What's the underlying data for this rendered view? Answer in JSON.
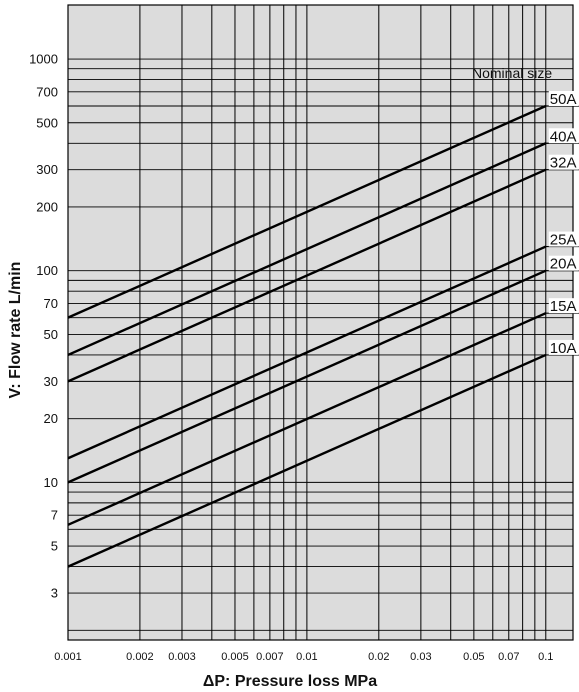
{
  "chart_data": {
    "type": "line",
    "xlabel": "ΔP: Pressure loss MPa",
    "ylabel": "V: Flow rate L/min",
    "x_scale": "log",
    "y_scale": "log",
    "xlim": [
      0.001,
      0.13
    ],
    "ylim": [
      1.8,
      1800
    ],
    "x_tick_labels": [
      {
        "value": 0.001,
        "label": "0.001"
      },
      {
        "value": 0.002,
        "label": "0.002"
      },
      {
        "value": 0.003,
        "label": "0.003"
      },
      {
        "value": 0.005,
        "label": "0.005"
      },
      {
        "value": 0.007,
        "label": "0.007"
      },
      {
        "value": 0.01,
        "label": "0.01"
      },
      {
        "value": 0.02,
        "label": "0.02"
      },
      {
        "value": 0.03,
        "label": "0.03"
      },
      {
        "value": 0.05,
        "label": "0.05"
      },
      {
        "value": 0.07,
        "label": "0.07"
      },
      {
        "value": 0.1,
        "label": "0.1"
      }
    ],
    "y_tick_labels": [
      {
        "value": 3,
        "label": "3"
      },
      {
        "value": 5,
        "label": "5"
      },
      {
        "value": 7,
        "label": "7"
      },
      {
        "value": 10,
        "label": "10"
      },
      {
        "value": 20,
        "label": "20"
      },
      {
        "value": 30,
        "label": "30"
      },
      {
        "value": 50,
        "label": "50"
      },
      {
        "value": 70,
        "label": "70"
      },
      {
        "value": 100,
        "label": "100"
      },
      {
        "value": 200,
        "label": "200"
      },
      {
        "value": 300,
        "label": "300"
      },
      {
        "value": 500,
        "label": "500"
      },
      {
        "value": 700,
        "label": "700"
      },
      {
        "value": 1000,
        "label": "1000"
      }
    ],
    "grid": true,
    "legend_title": "Nominal size",
    "series": [
      {
        "name": "50A",
        "x": [
          0.001,
          0.1
        ],
        "y": [
          60,
          600
        ]
      },
      {
        "name": "40A",
        "x": [
          0.001,
          0.1
        ],
        "y": [
          40,
          400
        ]
      },
      {
        "name": "32A",
        "x": [
          0.001,
          0.1
        ],
        "y": [
          30,
          300
        ]
      },
      {
        "name": "25A",
        "x": [
          0.001,
          0.1
        ],
        "y": [
          13,
          130
        ]
      },
      {
        "name": "20A",
        "x": [
          0.001,
          0.1
        ],
        "y": [
          10,
          100
        ]
      },
      {
        "name": "15A",
        "x": [
          0.001,
          0.1
        ],
        "y": [
          6.3,
          63
        ]
      },
      {
        "name": "10A",
        "x": [
          0.001,
          0.1
        ],
        "y": [
          4,
          40
        ]
      }
    ]
  }
}
